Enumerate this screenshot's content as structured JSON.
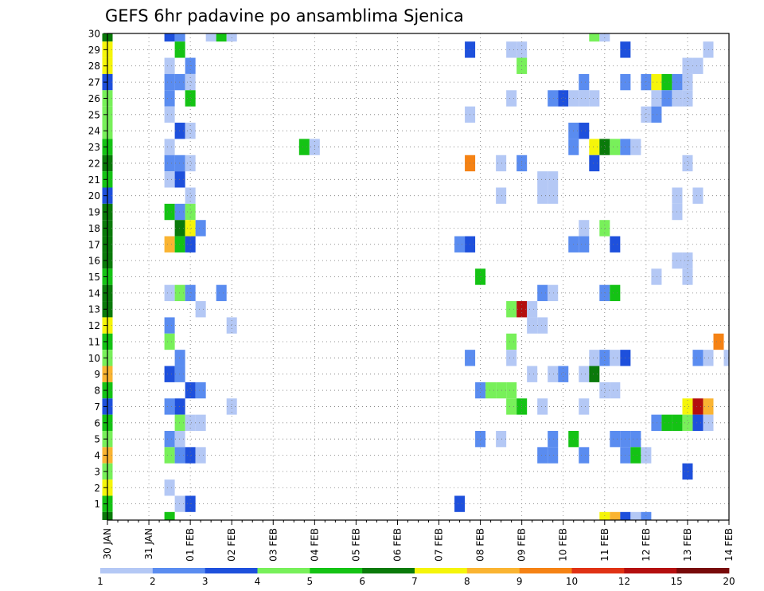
{
  "chart_data": {
    "type": "heatmap",
    "title": "GEFS 6hr padavine po ansamblima Sjenica",
    "xlabel": "",
    "ylabel": "",
    "x_ticks": [
      "30 JAN",
      "31 JAN",
      "01 FEB",
      "02 FEB",
      "03 FEB",
      "04 FEB",
      "05 FEB",
      "06 FEB",
      "07 FEB",
      "08 FEB",
      "09 FEB",
      "10 FEB",
      "11 FEB",
      "12 FEB",
      "13 FEB",
      "14 FEB"
    ],
    "x_steps_per_day": 4,
    "xlim": [
      0,
      60
    ],
    "y_ticks": [
      1,
      2,
      3,
      4,
      5,
      6,
      7,
      8,
      9,
      10,
      11,
      12,
      13,
      14,
      15,
      16,
      17,
      18,
      19,
      20,
      21,
      22,
      23,
      24,
      25,
      26,
      27,
      28,
      29,
      30
    ],
    "ylim": [
      0,
      30
    ],
    "grid": true,
    "colorbar": {
      "labels": [
        "1",
        "2",
        "3",
        "4",
        "5",
        "6",
        "7",
        "8",
        "9",
        "10",
        "12",
        "15",
        "20"
      ],
      "colors": [
        "#b4c8f5",
        "#5a8cf0",
        "#1e50dc",
        "#78f05a",
        "#14c314",
        "#0a7a0a",
        "#f5f50a",
        "#fab432",
        "#f58214",
        "#e03214",
        "#b40f0f",
        "#780a0a"
      ]
    },
    "cells": [
      [
        30,
        0,
        6
      ],
      [
        29,
        0,
        7
      ],
      [
        28,
        0,
        7
      ],
      [
        27,
        0,
        3
      ],
      [
        26,
        0,
        4
      ],
      [
        25,
        0,
        4
      ],
      [
        24,
        0,
        4
      ],
      [
        23,
        0,
        5
      ],
      [
        22,
        0,
        6
      ],
      [
        21,
        0,
        5
      ],
      [
        20,
        0,
        3
      ],
      [
        19,
        0,
        6
      ],
      [
        18,
        0,
        6
      ],
      [
        17,
        0,
        6
      ],
      [
        16,
        0,
        6
      ],
      [
        15,
        0,
        5
      ],
      [
        14,
        0,
        6
      ],
      [
        13,
        0,
        6
      ],
      [
        12,
        0,
        7
      ],
      [
        11,
        0,
        5
      ],
      [
        10,
        0,
        4
      ],
      [
        9,
        0,
        8
      ],
      [
        8,
        0,
        5
      ],
      [
        7,
        0,
        3
      ],
      [
        6,
        0,
        5
      ],
      [
        5,
        0,
        4
      ],
      [
        4,
        0,
        8
      ],
      [
        3,
        0,
        4
      ],
      [
        2,
        0,
        7
      ],
      [
        1,
        0,
        5
      ],
      [
        0,
        0,
        6
      ],
      [
        30,
        6,
        3
      ],
      [
        30,
        7,
        2
      ],
      [
        30,
        10,
        1
      ],
      [
        30,
        11,
        5
      ],
      [
        30,
        12,
        1
      ],
      [
        30,
        47,
        4
      ],
      [
        30,
        48,
        1
      ],
      [
        29,
        7,
        5
      ],
      [
        29,
        35,
        3
      ],
      [
        29,
        39,
        1
      ],
      [
        29,
        40,
        1
      ],
      [
        29,
        50,
        3
      ],
      [
        29,
        58,
        1
      ],
      [
        28,
        6,
        1
      ],
      [
        28,
        8,
        2
      ],
      [
        28,
        40,
        4
      ],
      [
        28,
        56,
        1
      ],
      [
        28,
        57,
        1
      ],
      [
        27,
        6,
        2
      ],
      [
        27,
        7,
        2
      ],
      [
        27,
        8,
        1
      ],
      [
        27,
        46,
        2
      ],
      [
        27,
        50,
        2
      ],
      [
        27,
        52,
        2
      ],
      [
        27,
        53,
        7
      ],
      [
        27,
        54,
        5
      ],
      [
        27,
        55,
        2
      ],
      [
        27,
        56,
        1
      ],
      [
        26,
        6,
        2
      ],
      [
        26,
        8,
        5
      ],
      [
        26,
        39,
        1
      ],
      [
        26,
        43,
        2
      ],
      [
        26,
        44,
        3
      ],
      [
        26,
        45,
        1
      ],
      [
        26,
        46,
        1
      ],
      [
        26,
        47,
        1
      ],
      [
        26,
        53,
        1
      ],
      [
        26,
        54,
        2
      ],
      [
        26,
        55,
        1
      ],
      [
        26,
        56,
        1
      ],
      [
        25,
        6,
        1
      ],
      [
        25,
        35,
        1
      ],
      [
        25,
        52,
        1
      ],
      [
        25,
        53,
        2
      ],
      [
        24,
        7,
        3
      ],
      [
        24,
        8,
        1
      ],
      [
        24,
        45,
        2
      ],
      [
        24,
        46,
        3
      ],
      [
        23,
        6,
        1
      ],
      [
        23,
        19,
        5
      ],
      [
        23,
        20,
        1
      ],
      [
        23,
        45,
        2
      ],
      [
        23,
        47,
        7
      ],
      [
        23,
        48,
        6
      ],
      [
        23,
        49,
        4
      ],
      [
        23,
        50,
        2
      ],
      [
        23,
        51,
        1
      ],
      [
        22,
        6,
        2
      ],
      [
        22,
        7,
        2
      ],
      [
        22,
        8,
        1
      ],
      [
        22,
        35,
        9
      ],
      [
        22,
        38,
        1
      ],
      [
        22,
        40,
        2
      ],
      [
        22,
        47,
        3
      ],
      [
        22,
        56,
        1
      ],
      [
        21,
        6,
        1
      ],
      [
        21,
        7,
        3
      ],
      [
        21,
        42,
        1
      ],
      [
        21,
        43,
        1
      ],
      [
        20,
        8,
        1
      ],
      [
        20,
        38,
        1
      ],
      [
        20,
        42,
        1
      ],
      [
        20,
        43,
        1
      ],
      [
        20,
        55,
        1
      ],
      [
        20,
        57,
        1
      ],
      [
        19,
        6,
        5
      ],
      [
        19,
        7,
        2
      ],
      [
        19,
        8,
        4
      ],
      [
        19,
        55,
        1
      ],
      [
        18,
        7,
        6
      ],
      [
        18,
        8,
        7
      ],
      [
        18,
        9,
        2
      ],
      [
        18,
        46,
        1
      ],
      [
        18,
        48,
        4
      ],
      [
        17,
        6,
        8
      ],
      [
        17,
        7,
        5
      ],
      [
        17,
        8,
        3
      ],
      [
        17,
        34,
        2
      ],
      [
        17,
        35,
        3
      ],
      [
        17,
        45,
        2
      ],
      [
        17,
        46,
        2
      ],
      [
        17,
        49,
        3
      ],
      [
        16,
        55,
        1
      ],
      [
        16,
        56,
        1
      ],
      [
        15,
        36,
        5
      ],
      [
        15,
        53,
        1
      ],
      [
        15,
        56,
        1
      ],
      [
        14,
        6,
        1
      ],
      [
        14,
        7,
        4
      ],
      [
        14,
        8,
        2
      ],
      [
        14,
        11,
        2
      ],
      [
        14,
        42,
        2
      ],
      [
        14,
        43,
        1
      ],
      [
        14,
        48,
        2
      ],
      [
        14,
        49,
        5
      ],
      [
        13,
        9,
        1
      ],
      [
        13,
        39,
        4
      ],
      [
        13,
        40,
        11
      ],
      [
        13,
        41,
        1
      ],
      [
        12,
        6,
        2
      ],
      [
        12,
        12,
        1
      ],
      [
        12,
        41,
        1
      ],
      [
        12,
        42,
        1
      ],
      [
        11,
        6,
        4
      ],
      [
        11,
        39,
        4
      ],
      [
        11,
        59,
        9
      ],
      [
        10,
        7,
        2
      ],
      [
        10,
        35,
        2
      ],
      [
        10,
        39,
        1
      ],
      [
        10,
        47,
        1
      ],
      [
        10,
        48,
        2
      ],
      [
        10,
        49,
        1
      ],
      [
        10,
        50,
        3
      ],
      [
        10,
        57,
        2
      ],
      [
        10,
        58,
        1
      ],
      [
        10,
        60,
        1
      ],
      [
        9,
        6,
        3
      ],
      [
        9,
        7,
        2
      ],
      [
        9,
        41,
        1
      ],
      [
        9,
        43,
        1
      ],
      [
        9,
        44,
        2
      ],
      [
        9,
        46,
        1
      ],
      [
        9,
        47,
        6
      ],
      [
        8,
        8,
        3
      ],
      [
        8,
        9,
        2
      ],
      [
        8,
        36,
        2
      ],
      [
        8,
        37,
        4
      ],
      [
        8,
        38,
        4
      ],
      [
        8,
        39,
        4
      ],
      [
        8,
        48,
        1
      ],
      [
        8,
        49,
        1
      ],
      [
        7,
        6,
        2
      ],
      [
        7,
        7,
        3
      ],
      [
        7,
        12,
        1
      ],
      [
        7,
        39,
        4
      ],
      [
        7,
        40,
        5
      ],
      [
        7,
        42,
        1
      ],
      [
        7,
        46,
        1
      ],
      [
        7,
        56,
        7
      ],
      [
        7,
        57,
        11
      ],
      [
        7,
        58,
        8
      ],
      [
        6,
        7,
        4
      ],
      [
        6,
        8,
        1
      ],
      [
        6,
        9,
        1
      ],
      [
        6,
        53,
        2
      ],
      [
        6,
        54,
        5
      ],
      [
        6,
        55,
        5
      ],
      [
        6,
        56,
        4
      ],
      [
        6,
        57,
        3
      ],
      [
        6,
        58,
        1
      ],
      [
        5,
        6,
        2
      ],
      [
        5,
        7,
        1
      ],
      [
        5,
        36,
        2
      ],
      [
        5,
        38,
        1
      ],
      [
        5,
        43,
        2
      ],
      [
        5,
        45,
        5
      ],
      [
        5,
        49,
        2
      ],
      [
        5,
        50,
        2
      ],
      [
        5,
        51,
        2
      ],
      [
        4,
        6,
        4
      ],
      [
        4,
        7,
        2
      ],
      [
        4,
        8,
        3
      ],
      [
        4,
        9,
        1
      ],
      [
        4,
        42,
        2
      ],
      [
        4,
        43,
        2
      ],
      [
        4,
        46,
        2
      ],
      [
        4,
        50,
        2
      ],
      [
        4,
        51,
        5
      ],
      [
        4,
        52,
        1
      ],
      [
        3,
        56,
        3
      ],
      [
        2,
        6,
        1
      ],
      [
        1,
        7,
        1
      ],
      [
        1,
        8,
        3
      ],
      [
        1,
        34,
        3
      ],
      [
        0,
        6,
        5
      ],
      [
        0,
        48,
        7
      ],
      [
        0,
        49,
        8
      ],
      [
        0,
        50,
        3
      ],
      [
        0,
        51,
        1
      ],
      [
        0,
        52,
        2
      ]
    ]
  }
}
